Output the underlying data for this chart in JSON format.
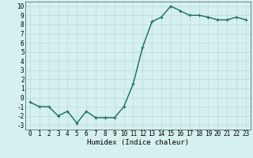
{
  "x": [
    0,
    1,
    2,
    3,
    4,
    5,
    6,
    7,
    8,
    9,
    10,
    11,
    12,
    13,
    14,
    15,
    16,
    17,
    18,
    19,
    20,
    21,
    22,
    23
  ],
  "y": [
    -0.5,
    -1.0,
    -1.0,
    -2.0,
    -1.5,
    -2.8,
    -1.5,
    -2.2,
    -2.2,
    -2.2,
    -1.0,
    1.5,
    5.5,
    8.3,
    8.8,
    10.0,
    9.5,
    9.0,
    9.0,
    8.8,
    8.5,
    8.5,
    8.8,
    8.5
  ],
  "line_color": "#1a6b5a",
  "marker": "+",
  "marker_size": 3,
  "background_color": "#d5f0ee",
  "grid_color": "#b8ddd8",
  "xlabel": "Humidex (Indice chaleur)",
  "xlim": [
    -0.5,
    23.5
  ],
  "ylim": [
    -3.5,
    10.5
  ],
  "xticks": [
    0,
    1,
    2,
    3,
    4,
    5,
    6,
    7,
    8,
    9,
    10,
    11,
    12,
    13,
    14,
    15,
    16,
    17,
    18,
    19,
    20,
    21,
    22,
    23
  ],
  "yticks": [
    -3,
    -2,
    -1,
    0,
    1,
    2,
    3,
    4,
    5,
    6,
    7,
    8,
    9,
    10
  ],
  "xlabel_fontsize": 6.5,
  "tick_fontsize": 5.5,
  "line_width": 1.0
}
